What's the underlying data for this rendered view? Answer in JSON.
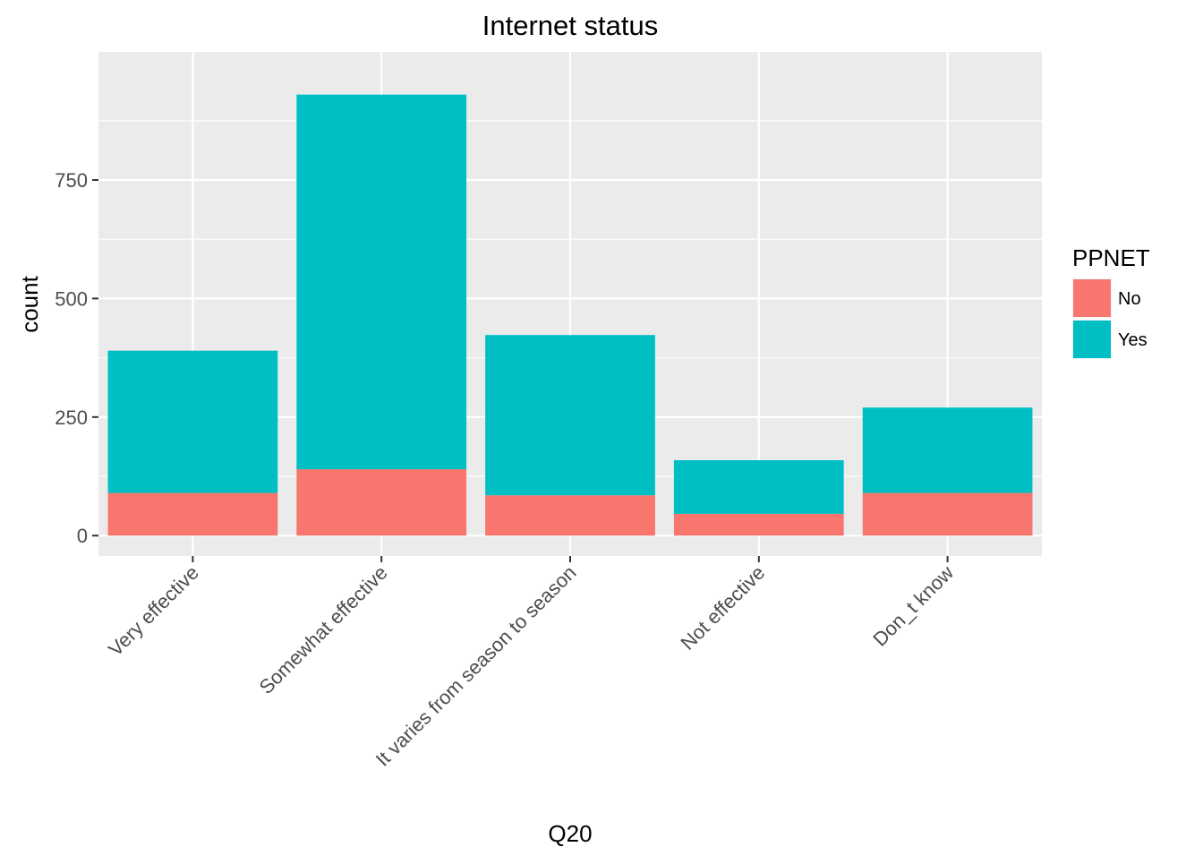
{
  "chart_data": {
    "type": "bar",
    "stacked": true,
    "title": "Internet status",
    "xlabel": "Q20",
    "ylabel": "count",
    "categories": [
      "Very effective",
      "Somewhat effective",
      "It varies from season to season",
      "Not effective",
      "Don_t know"
    ],
    "series": [
      {
        "name": "No",
        "values": [
          90,
          140,
          85,
          46,
          90
        ],
        "color": "#F8766D"
      },
      {
        "name": "Yes",
        "values": [
          300,
          790,
          338,
          113,
          180
        ],
        "color": "#00BFC4"
      }
    ],
    "ylim": [
      -43,
      1020
    ],
    "yticks": [
      0,
      250,
      500,
      750
    ],
    "grid": true,
    "legend": {
      "title": "PPNET",
      "position": "right"
    },
    "background_color": "#EBEBEB"
  }
}
